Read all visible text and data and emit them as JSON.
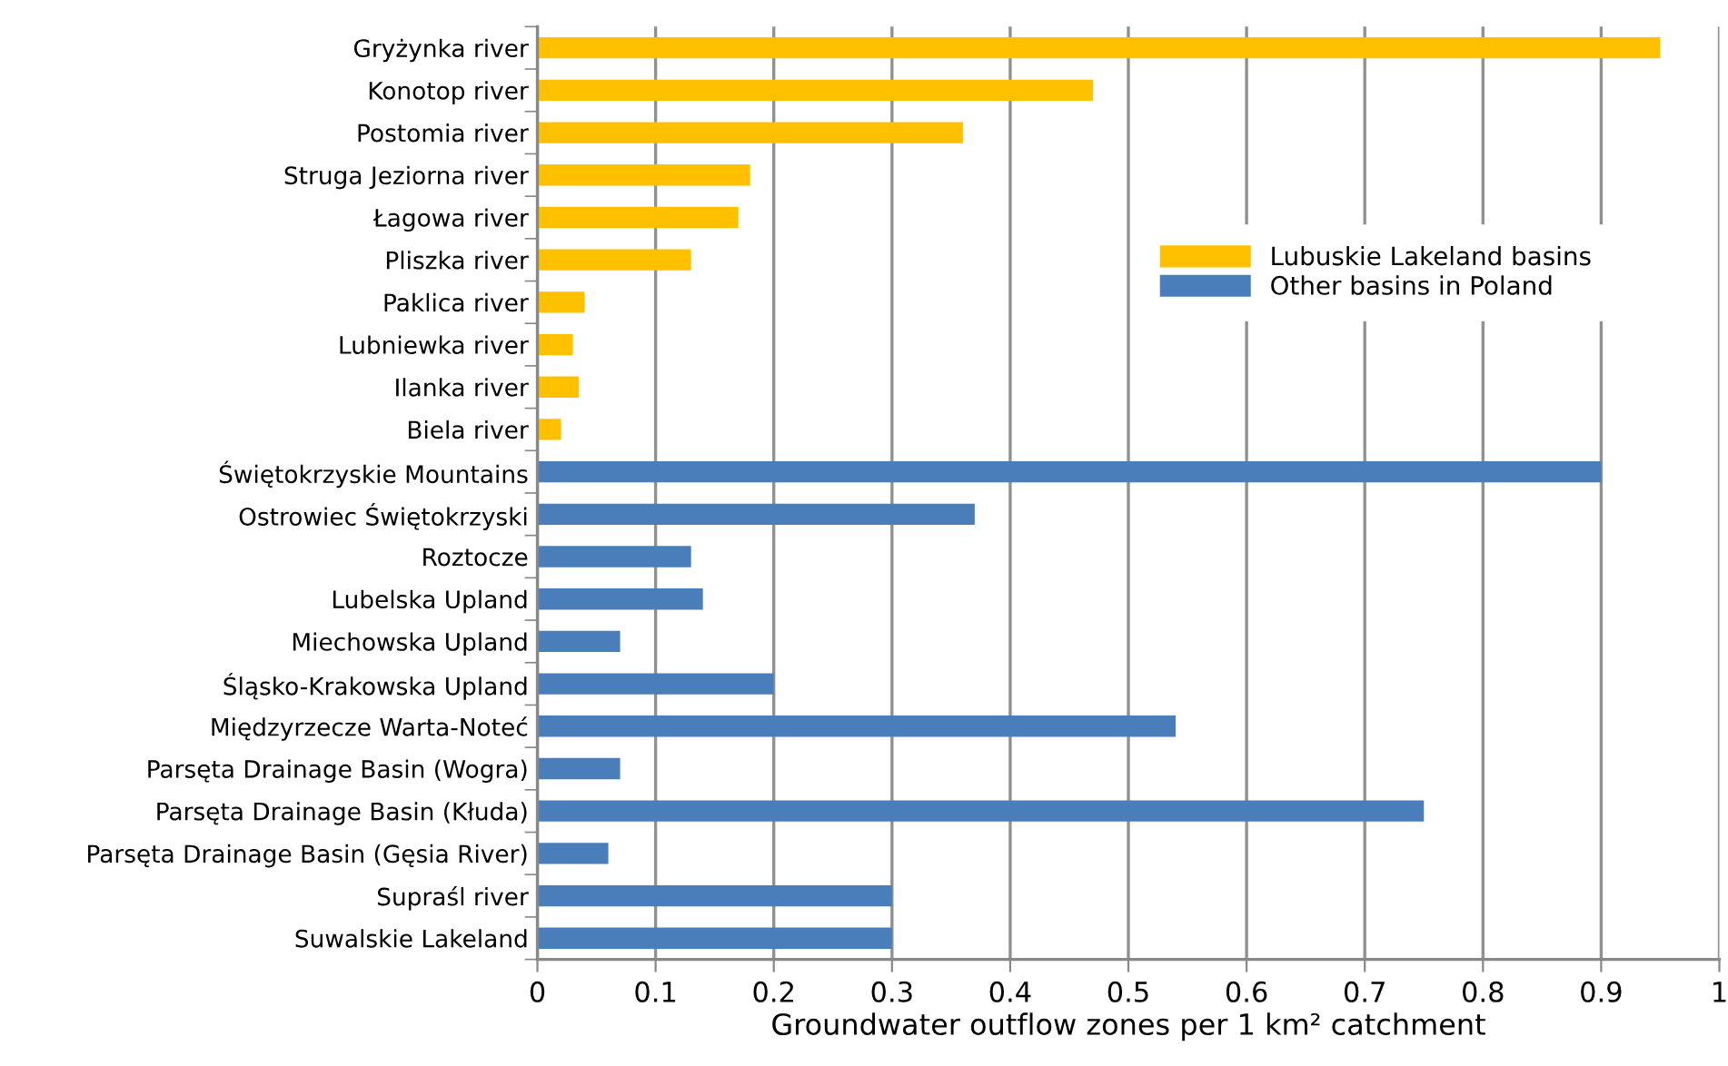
{
  "chart_data": {
    "type": "bar",
    "orientation": "horizontal",
    "xlabel": "Groundwater outflow zones per 1 km² catchment",
    "categories": [
      "Gryżynka river",
      "Konotop river",
      "Postomia river",
      "Struga Jeziorna river",
      "Łagowa river",
      "Pliszka river",
      "Paklica river",
      "Lubniewka river",
      "Ilanka river",
      "Biela river",
      "Świętokrzyskie Mountains",
      "Ostrowiec Świętokrzyski",
      "Roztocze",
      "Lubelska Upland",
      "Miechowska Upland",
      "Śląsko-Krakowska Upland",
      "Międzyrzecze Warta-Noteć",
      "Parsęta Drainage Basin (Wogra)",
      "Parsęta Drainage Basin (Kłuda)",
      "Parsęta Drainage Basin (Gęsia River)",
      "Supraśl river",
      "Suwalskie Lakeland"
    ],
    "series": [
      {
        "name": "Lubuskie Lakeland basins",
        "color": "#ffc000",
        "values": [
          0.95,
          0.47,
          0.36,
          0.18,
          0.17,
          0.13,
          0.04,
          0.03,
          0.035,
          0.02,
          null,
          null,
          null,
          null,
          null,
          null,
          null,
          null,
          null,
          null,
          null,
          null
        ]
      },
      {
        "name": "Other basins in Poland",
        "color": "#4a7ebb",
        "values": [
          null,
          null,
          null,
          null,
          null,
          null,
          null,
          null,
          null,
          null,
          0.9,
          0.37,
          0.13,
          0.14,
          0.07,
          0.2,
          0.54,
          0.07,
          0.75,
          0.06,
          0.3,
          0.3
        ]
      }
    ],
    "xlim": [
      0,
      1
    ],
    "xticks": [
      0,
      0.1,
      0.2,
      0.3,
      0.4,
      0.5,
      0.6,
      0.7,
      0.8,
      0.9,
      1
    ],
    "grid": "x",
    "legend": "top right"
  }
}
